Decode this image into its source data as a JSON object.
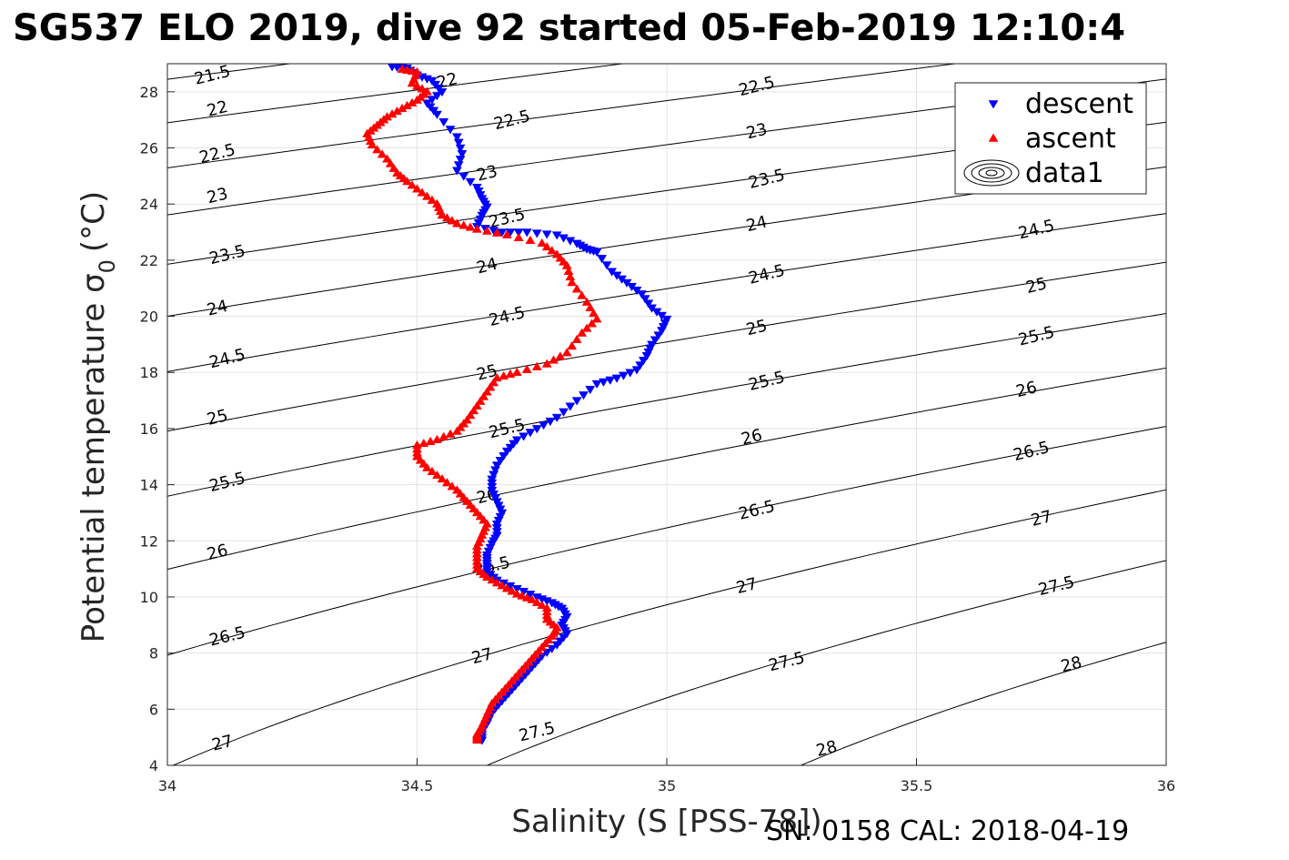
{
  "title": "SG537 ELO 2019, dive 92 started 05-Feb-2019 12:10:4",
  "footer": "SN: 0158  CAL: 2018-04-19",
  "chart_data": {
    "type": "scatter",
    "xlabel": "Salinity (S [PSS-78])",
    "ylabel_main": "Potential temperature",
    "ylabel_sigma": "σ",
    "ylabel_sub": "0",
    "ylabel_unit": "(°C)",
    "xlim": [
      34,
      36
    ],
    "ylim": [
      4,
      29
    ],
    "xticks": [
      34,
      34.5,
      35,
      35.5,
      36
    ],
    "xtick_labels": [
      "34",
      "34.5",
      "35",
      "35.5",
      "36"
    ],
    "yticks": [
      4,
      6,
      8,
      10,
      12,
      14,
      16,
      18,
      20,
      22,
      24,
      26,
      28
    ],
    "ytick_labels": [
      "4",
      "6",
      "8",
      "10",
      "12",
      "14",
      "16",
      "18",
      "20",
      "22",
      "24",
      "26",
      "28"
    ],
    "grid": true,
    "legend_placement": "top-right",
    "legend": [
      {
        "label": "descent",
        "marker": "triangle-down",
        "color": "#0000ff"
      },
      {
        "label": "ascent",
        "marker": "triangle-up",
        "color": "#ff0000"
      },
      {
        "label": "data1",
        "marker": "contour",
        "color": "#000000"
      }
    ],
    "density_contours": [
      21.5,
      22,
      22.5,
      23,
      23.5,
      24,
      24.5,
      25,
      25.5,
      26,
      26.5,
      27,
      27.5,
      28
    ],
    "contour_labels": [
      {
        "text": "21.5",
        "s": 34.09,
        "t": 28.6
      },
      {
        "text": "22",
        "s": 34.56,
        "t": 28.4
      },
      {
        "text": "22.5",
        "s": 35.18,
        "t": 28.2
      },
      {
        "text": "22",
        "s": 34.1,
        "t": 27.4
      },
      {
        "text": "22.5",
        "s": 34.69,
        "t": 27.0
      },
      {
        "text": "23",
        "s": 35.18,
        "t": 26.6
      },
      {
        "text": "22.5",
        "s": 34.1,
        "t": 25.8
      },
      {
        "text": "23",
        "s": 34.64,
        "t": 25.1
      },
      {
        "text": "23.5",
        "s": 35.2,
        "t": 24.9
      },
      {
        "text": "23",
        "s": 34.1,
        "t": 24.3
      },
      {
        "text": "23.5",
        "s": 34.68,
        "t": 23.5
      },
      {
        "text": "24",
        "s": 35.18,
        "t": 23.3
      },
      {
        "text": "24.5",
        "s": 35.74,
        "t": 23.1
      },
      {
        "text": "23.5",
        "s": 34.12,
        "t": 22.2
      },
      {
        "text": "24",
        "s": 34.64,
        "t": 21.8
      },
      {
        "text": "24.5",
        "s": 35.2,
        "t": 21.5
      },
      {
        "text": "25",
        "s": 35.74,
        "t": 21.1
      },
      {
        "text": "24",
        "s": 34.1,
        "t": 20.3
      },
      {
        "text": "24.5",
        "s": 34.68,
        "t": 20.0
      },
      {
        "text": "25",
        "s": 35.18,
        "t": 19.6
      },
      {
        "text": "25.5",
        "s": 35.74,
        "t": 19.3
      },
      {
        "text": "24.5",
        "s": 34.12,
        "t": 18.5
      },
      {
        "text": "25",
        "s": 34.64,
        "t": 18.0
      },
      {
        "text": "25.5",
        "s": 35.2,
        "t": 17.7
      },
      {
        "text": "26",
        "s": 35.72,
        "t": 17.4
      },
      {
        "text": "25",
        "s": 34.1,
        "t": 16.4
      },
      {
        "text": "25.5",
        "s": 34.68,
        "t": 16.0
      },
      {
        "text": "26",
        "s": 35.17,
        "t": 15.7
      },
      {
        "text": "26.5",
        "s": 35.73,
        "t": 15.2
      },
      {
        "text": "25.5",
        "s": 34.12,
        "t": 14.1
      },
      {
        "text": "26",
        "s": 34.64,
        "t": 13.6
      },
      {
        "text": "26.5",
        "s": 35.18,
        "t": 13.1
      },
      {
        "text": "27",
        "s": 35.75,
        "t": 12.8
      },
      {
        "text": "26",
        "s": 34.1,
        "t": 11.6
      },
      {
        "text": "26.5",
        "s": 34.65,
        "t": 11.1
      },
      {
        "text": "27",
        "s": 35.16,
        "t": 10.4
      },
      {
        "text": "27.5",
        "s": 35.78,
        "t": 10.4
      },
      {
        "text": "26.5",
        "s": 34.12,
        "t": 8.6
      },
      {
        "text": "27",
        "s": 34.63,
        "t": 7.9
      },
      {
        "text": "27.5",
        "s": 35.24,
        "t": 7.7
      },
      {
        "text": "28",
        "s": 35.81,
        "t": 7.6
      },
      {
        "text": "27",
        "s": 34.11,
        "t": 4.8
      },
      {
        "text": "27.5",
        "s": 34.74,
        "t": 5.2
      },
      {
        "text": "28",
        "s": 35.32,
        "t": 4.6
      }
    ],
    "series": [
      {
        "name": "descent",
        "marker": "triangle-down",
        "color": "#0000ff",
        "points": [
          [
            34.45,
            28.9
          ],
          [
            34.48,
            28.85
          ],
          [
            34.5,
            28.6
          ],
          [
            34.53,
            28.4
          ],
          [
            34.55,
            28.0
          ],
          [
            34.52,
            27.6
          ],
          [
            34.54,
            27.2
          ],
          [
            34.58,
            26.4
          ],
          [
            34.59,
            25.8
          ],
          [
            34.58,
            25.2
          ],
          [
            34.62,
            24.6
          ],
          [
            34.63,
            24.2
          ],
          [
            34.64,
            23.9
          ],
          [
            34.63,
            23.6
          ],
          [
            34.62,
            23.2
          ],
          [
            34.67,
            23.0
          ],
          [
            34.72,
            23.0
          ],
          [
            34.78,
            22.9
          ],
          [
            34.82,
            22.6
          ],
          [
            34.84,
            22.4
          ],
          [
            34.86,
            22.3
          ],
          [
            34.89,
            21.6
          ],
          [
            34.92,
            21.2
          ],
          [
            34.95,
            20.8
          ],
          [
            34.97,
            20.3
          ],
          [
            35.0,
            19.9
          ],
          [
            34.99,
            19.5
          ],
          [
            34.97,
            19.0
          ],
          [
            34.96,
            18.6
          ],
          [
            34.94,
            18.1
          ],
          [
            34.9,
            17.8
          ],
          [
            34.86,
            17.6
          ],
          [
            34.82,
            17.0
          ],
          [
            34.78,
            16.4
          ],
          [
            34.74,
            16.0
          ],
          [
            34.7,
            15.6
          ],
          [
            34.68,
            15.2
          ],
          [
            34.66,
            14.7
          ],
          [
            34.65,
            14.2
          ],
          [
            34.65,
            13.8
          ],
          [
            34.66,
            13.4
          ],
          [
            34.67,
            13.0
          ],
          [
            34.66,
            12.6
          ],
          [
            34.66,
            12.2
          ],
          [
            34.65,
            11.9
          ],
          [
            34.64,
            11.5
          ],
          [
            34.64,
            11.2
          ],
          [
            34.64,
            10.9
          ],
          [
            34.66,
            10.6
          ],
          [
            34.7,
            10.3
          ],
          [
            34.74,
            10.0
          ],
          [
            34.77,
            9.8
          ],
          [
            34.79,
            9.6
          ],
          [
            34.8,
            9.3
          ],
          [
            34.79,
            9.0
          ],
          [
            34.8,
            8.7
          ],
          [
            34.78,
            8.3
          ],
          [
            34.75,
            7.9
          ],
          [
            34.73,
            7.5
          ],
          [
            34.71,
            7.1
          ],
          [
            34.69,
            6.7
          ],
          [
            34.67,
            6.3
          ],
          [
            34.65,
            5.9
          ],
          [
            34.64,
            5.5
          ],
          [
            34.63,
            5.2
          ],
          [
            34.63,
            4.9
          ]
        ]
      },
      {
        "name": "ascent",
        "marker": "triangle-up",
        "color": "#ff0000",
        "points": [
          [
            34.47,
            28.8
          ],
          [
            34.5,
            28.7
          ],
          [
            34.49,
            28.3
          ],
          [
            34.52,
            28.0
          ],
          [
            34.5,
            27.7
          ],
          [
            34.47,
            27.4
          ],
          [
            34.44,
            27.1
          ],
          [
            34.42,
            26.8
          ],
          [
            34.4,
            26.5
          ],
          [
            34.41,
            26.1
          ],
          [
            34.44,
            25.6
          ],
          [
            34.46,
            25.1
          ],
          [
            34.48,
            24.8
          ],
          [
            34.51,
            24.4
          ],
          [
            34.54,
            24.0
          ],
          [
            34.55,
            23.6
          ],
          [
            34.58,
            23.3
          ],
          [
            34.62,
            23.1
          ],
          [
            34.68,
            22.9
          ],
          [
            34.75,
            22.6
          ],
          [
            34.78,
            22.2
          ],
          [
            34.8,
            21.8
          ],
          [
            34.81,
            21.2
          ],
          [
            34.84,
            20.5
          ],
          [
            34.86,
            19.9
          ],
          [
            34.83,
            19.4
          ],
          [
            34.8,
            18.7
          ],
          [
            34.76,
            18.3
          ],
          [
            34.7,
            18.0
          ],
          [
            34.66,
            17.8
          ],
          [
            34.64,
            17.3
          ],
          [
            34.62,
            16.8
          ],
          [
            34.6,
            16.3
          ],
          [
            34.58,
            15.9
          ],
          [
            34.54,
            15.6
          ],
          [
            34.5,
            15.4
          ],
          [
            34.5,
            15.0
          ],
          [
            34.52,
            14.6
          ],
          [
            34.55,
            14.2
          ],
          [
            34.58,
            13.8
          ],
          [
            34.6,
            13.4
          ],
          [
            34.62,
            13.0
          ],
          [
            34.64,
            12.6
          ],
          [
            34.63,
            12.2
          ],
          [
            34.62,
            11.8
          ],
          [
            34.62,
            11.4
          ],
          [
            34.62,
            11.0
          ],
          [
            34.64,
            10.7
          ],
          [
            34.67,
            10.4
          ],
          [
            34.7,
            10.1
          ],
          [
            34.73,
            9.9
          ],
          [
            34.76,
            9.6
          ],
          [
            34.76,
            9.2
          ],
          [
            34.78,
            8.9
          ],
          [
            34.77,
            8.6
          ],
          [
            34.75,
            8.2
          ],
          [
            34.73,
            7.8
          ],
          [
            34.71,
            7.4
          ],
          [
            34.69,
            7.0
          ],
          [
            34.67,
            6.6
          ],
          [
            34.65,
            6.2
          ],
          [
            34.64,
            5.8
          ],
          [
            34.63,
            5.4
          ],
          [
            34.62,
            5.1
          ],
          [
            34.62,
            4.9
          ]
        ]
      }
    ]
  }
}
